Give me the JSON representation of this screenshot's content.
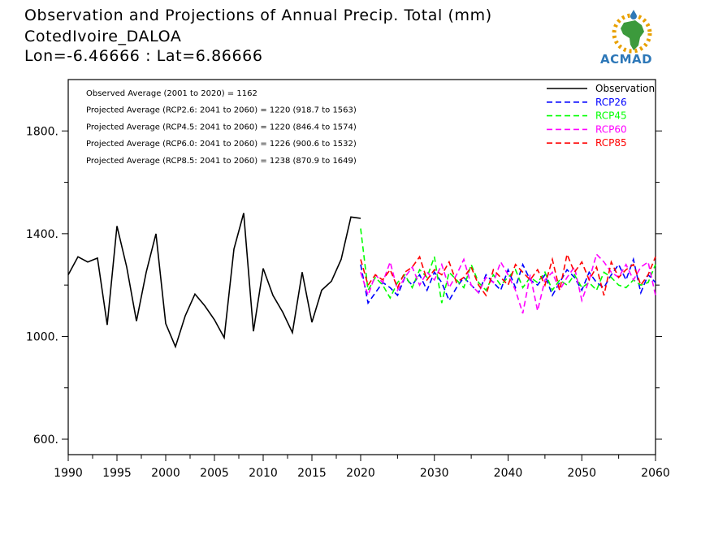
{
  "header": {
    "title_line1": "Observation and Projections of Annual Precip. Total (mm)",
    "title_line2": "CotedIvoire_DALOA",
    "title_line3": "Lon=-6.46666 : Lat=6.86666",
    "logo_text": "ACMAD"
  },
  "stats": [
    "Observed Average (2001 to 2020) = 1162",
    "Projected Average (RCP2.6: 2041 to 2060) = 1220 (918.7 to 1563)",
    "Projected Average (RCP4.5: 2041 to 2060) = 1220 (846.4 to 1574)",
    "Projected Average (RCP6.0: 2041 to 2060) = 1226 (900.6 to 1532)",
    "Projected Average (RCP8.5: 2041 to 2060) = 1238 (870.9 to 1649)"
  ],
  "colors": {
    "observation": "#000000",
    "rcp26": "#0000ff",
    "rcp45": "#00ff00",
    "rcp60": "#ff00ff",
    "rcp85": "#ff0000"
  },
  "chart_data": {
    "type": "line",
    "title": "Observation and Projections of Annual Precip. Total (mm)",
    "xlabel": "",
    "ylabel": "",
    "xlim": [
      1990,
      2060
    ],
    "ylim": [
      540,
      2000
    ],
    "x_ticks": [
      1990,
      1995,
      2000,
      2005,
      2010,
      2015,
      2020,
      2030,
      2040,
      2050,
      2060
    ],
    "y_ticks": [
      600,
      1000,
      1400,
      1800
    ],
    "y_tick_labels": [
      "600.",
      "1000.",
      "1400.",
      "1800."
    ],
    "grid": false,
    "legend_position": "top-right",
    "series": [
      {
        "name": "Observation",
        "style": "solid",
        "color": "#000000",
        "x": [
          1990,
          1991,
          1992,
          1993,
          1994,
          1995,
          1996,
          1997,
          1998,
          1999,
          2000,
          2001,
          2002,
          2003,
          2004,
          2005,
          2006,
          2007,
          2008,
          2009,
          2010,
          2011,
          2012,
          2013,
          2014,
          2015,
          2016,
          2017,
          2018,
          2019,
          2020
        ],
        "values": [
          1240,
          1310,
          1290,
          1305,
          1045,
          1430,
          1270,
          1060,
          1250,
          1400,
          1050,
          960,
          1080,
          1165,
          1120,
          1065,
          995,
          1340,
          1480,
          1020,
          1265,
          1160,
          1095,
          1015,
          1250,
          1055,
          1180,
          1215,
          1300,
          1465,
          1460
        ]
      },
      {
        "name": "RCP26",
        "style": "dashed",
        "color": "#0000ff",
        "x": [
          2020,
          2021,
          2022,
          2023,
          2024,
          2025,
          2026,
          2027,
          2028,
          2029,
          2030,
          2031,
          2032,
          2033,
          2034,
          2035,
          2036,
          2037,
          2038,
          2039,
          2040,
          2041,
          2042,
          2043,
          2044,
          2045,
          2046,
          2047,
          2048,
          2049,
          2050,
          2051,
          2052,
          2053,
          2054,
          2055,
          2056,
          2057,
          2058,
          2059,
          2060
        ],
        "values": [
          1280,
          1130,
          1170,
          1210,
          1190,
          1160,
          1230,
          1200,
          1240,
          1180,
          1250,
          1210,
          1140,
          1190,
          1230,
          1200,
          1170,
          1240,
          1210,
          1180,
          1260,
          1190,
          1280,
          1220,
          1200,
          1240,
          1160,
          1210,
          1260,
          1230,
          1180,
          1250,
          1210,
          1190,
          1240,
          1280,
          1220,
          1300,
          1170,
          1240,
          1210
        ]
      },
      {
        "name": "RCP45",
        "style": "dashed",
        "color": "#00ff00",
        "x": [
          2020,
          2021,
          2022,
          2023,
          2024,
          2025,
          2026,
          2027,
          2028,
          2029,
          2030,
          2031,
          2032,
          2033,
          2034,
          2035,
          2036,
          2037,
          2038,
          2039,
          2040,
          2041,
          2042,
          2043,
          2044,
          2045,
          2046,
          2047,
          2048,
          2049,
          2050,
          2051,
          2052,
          2053,
          2054,
          2055,
          2056,
          2057,
          2058,
          2059,
          2060
        ],
        "values": [
          1420,
          1180,
          1230,
          1200,
          1150,
          1210,
          1240,
          1190,
          1260,
          1230,
          1310,
          1130,
          1250,
          1220,
          1190,
          1280,
          1210,
          1180,
          1240,
          1200,
          1230,
          1260,
          1190,
          1230,
          1210,
          1250,
          1180,
          1220,
          1200,
          1240,
          1190,
          1210,
          1180,
          1250,
          1230,
          1200,
          1190,
          1220,
          1200,
          1210,
          1280
        ]
      },
      {
        "name": "RCP60",
        "style": "dashed",
        "color": "#ff00ff",
        "x": [
          2020,
          2021,
          2022,
          2023,
          2024,
          2025,
          2026,
          2027,
          2028,
          2029,
          2030,
          2031,
          2032,
          2033,
          2034,
          2035,
          2036,
          2037,
          2038,
          2039,
          2040,
          2041,
          2042,
          2043,
          2044,
          2045,
          2046,
          2047,
          2048,
          2049,
          2050,
          2051,
          2052,
          2053,
          2054,
          2055,
          2056,
          2057,
          2058,
          2059,
          2060
        ],
        "values": [
          1250,
          1160,
          1240,
          1210,
          1290,
          1180,
          1230,
          1270,
          1200,
          1250,
          1220,
          1280,
          1190,
          1240,
          1300,
          1200,
          1170,
          1230,
          1210,
          1290,
          1240,
          1180,
          1090,
          1240,
          1100,
          1220,
          1250,
          1180,
          1230,
          1270,
          1140,
          1220,
          1320,
          1290,
          1250,
          1230,
          1280,
          1220,
          1270,
          1290,
          1160
        ]
      },
      {
        "name": "RCP85",
        "style": "dashed",
        "color": "#ff0000",
        "x": [
          2020,
          2021,
          2022,
          2023,
          2024,
          2025,
          2026,
          2027,
          2028,
          2029,
          2030,
          2031,
          2032,
          2033,
          2034,
          2035,
          2036,
          2037,
          2038,
          2039,
          2040,
          2041,
          2042,
          2043,
          2044,
          2045,
          2046,
          2047,
          2048,
          2049,
          2050,
          2051,
          2052,
          2053,
          2054,
          2055,
          2056,
          2057,
          2058,
          2059,
          2060
        ],
        "values": [
          1300,
          1200,
          1240,
          1220,
          1260,
          1190,
          1250,
          1270,
          1310,
          1220,
          1260,
          1240,
          1290,
          1210,
          1230,
          1270,
          1200,
          1160,
          1260,
          1230,
          1200,
          1280,
          1250,
          1220,
          1260,
          1200,
          1300,
          1180,
          1320,
          1250,
          1290,
          1220,
          1270,
          1160,
          1290,
          1230,
          1260,
          1280,
          1200,
          1240,
          1310
        ]
      }
    ]
  }
}
